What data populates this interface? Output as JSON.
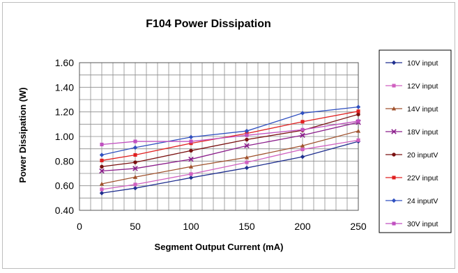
{
  "chart_data": {
    "type": "line",
    "title": "F104  Power Dissipation",
    "xlabel": "Segment Output Current (mA)",
    "ylabel": "Power Dissipation (W)",
    "xlim": [
      0,
      250
    ],
    "ylim": [
      0.4,
      1.6
    ],
    "x_ticks": [
      "0",
      "50",
      "100",
      "150",
      "200",
      "250"
    ],
    "y_ticks": [
      "0.40",
      "0.60",
      "0.80",
      "1.00",
      "1.20",
      "1.40",
      "1.60"
    ],
    "grid": true,
    "legend_position": "right",
    "x": [
      20,
      50,
      100,
      150,
      200,
      250
    ],
    "series": [
      {
        "name": "10V input",
        "color": "#1f2f8f",
        "marker": "diamond",
        "values": [
          0.54,
          0.58,
          0.665,
          0.745,
          0.835,
          0.96
        ]
      },
      {
        "name": "12V input",
        "color": "#d060c0",
        "marker": "square",
        "values": [
          0.57,
          0.61,
          0.695,
          0.79,
          0.895,
          0.97
        ]
      },
      {
        "name": "14V input",
        "color": "#a0522d",
        "marker": "triangle",
        "values": [
          0.615,
          0.67,
          0.755,
          0.83,
          0.925,
          1.045
        ]
      },
      {
        "name": "18V input",
        "color": "#8b1e8b",
        "marker": "x",
        "values": [
          0.72,
          0.74,
          0.815,
          0.925,
          1.01,
          1.115
        ]
      },
      {
        "name": "20 inputV",
        "color": "#7a1010",
        "marker": "circle",
        "values": [
          0.755,
          0.79,
          0.885,
          0.975,
          1.05,
          1.18
        ]
      },
      {
        "name": "22V input",
        "color": "#e02020",
        "marker": "square",
        "values": [
          0.805,
          0.85,
          0.945,
          1.025,
          1.12,
          1.205
        ]
      },
      {
        "name": "24 inputV",
        "color": "#3050c0",
        "marker": "diamond",
        "values": [
          0.85,
          0.91,
          0.995,
          1.045,
          1.19,
          1.24
        ]
      },
      {
        "name": "30V input",
        "color": "#c050c0",
        "marker": "square",
        "values": [
          0.935,
          0.96,
          0.96,
          1.01,
          1.055,
          1.125
        ]
      }
    ]
  }
}
